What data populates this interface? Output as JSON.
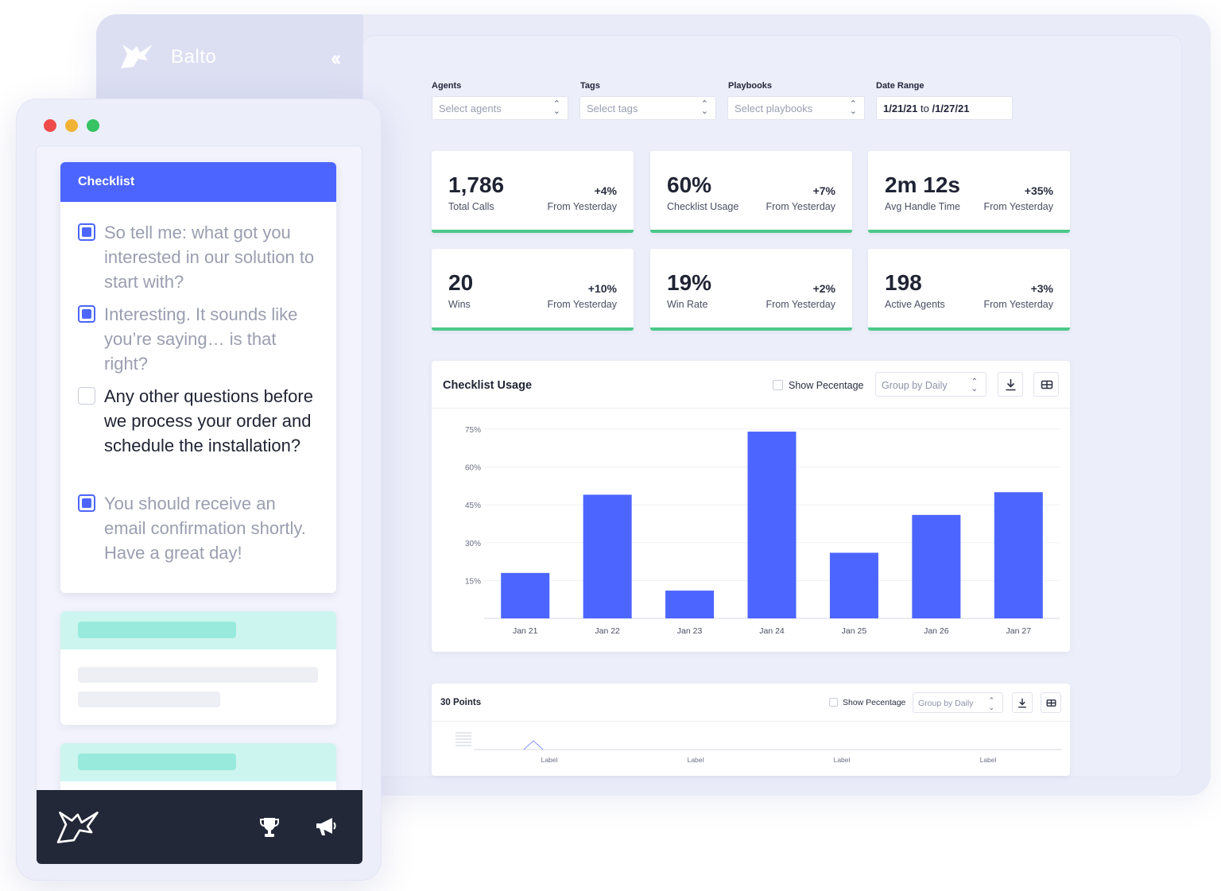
{
  "app": {
    "brand_name": "Balto",
    "logo_icon": "fox-logo-icon",
    "collapse_icon": "double-chevron-left-icon"
  },
  "filters": {
    "agents": {
      "label": "Agents",
      "placeholder": "Select agents"
    },
    "tags": {
      "label": "Tags",
      "placeholder": "Select tags"
    },
    "playbooks": {
      "label": "Playbooks",
      "placeholder": "Select playbooks"
    },
    "date_range": {
      "label": "Date Range",
      "start": "1/21/21",
      "to": "to",
      "end": "/1/27/21"
    }
  },
  "stats": [
    {
      "value": "1,786",
      "label": "Total Calls",
      "delta": "+4%",
      "from": "From Yesterday"
    },
    {
      "value": "60%",
      "label": "Checklist Usage",
      "delta": "+7%",
      "from": "From Yesterday"
    },
    {
      "value": "2m 12s",
      "label": "Avg Handle Time",
      "delta": "+35%",
      "from": "From Yesterday"
    },
    {
      "value": "20",
      "label": "Wins",
      "delta": "+10%",
      "from": "From Yesterday"
    },
    {
      "value": "19%",
      "label": "Win Rate",
      "delta": "+2%",
      "from": "From Yesterday"
    },
    {
      "value": "198",
      "label": "Active Agents",
      "delta": "+3%",
      "from": "From Yesterday"
    }
  ],
  "checklist_usage": {
    "title": "Checklist Usage",
    "show_percentage_label": "Show Pecentage",
    "group_by_label": "Group by Daily",
    "download_icon": "download-icon",
    "table_icon": "table-view-icon"
  },
  "points_card": {
    "title": "30 Points",
    "show_percentage_label": "Show Pecentage",
    "group_by_label": "Group by Daily",
    "x_tick_labels": [
      "Label",
      "Label",
      "Label",
      "Label"
    ]
  },
  "chart_data": {
    "type": "bar",
    "title": "Checklist Usage",
    "categories": [
      "Jan 21",
      "Jan 22",
      "Jan 23",
      "Jan 24",
      "Jan 25",
      "Jan 26",
      "Jan 27"
    ],
    "values": [
      18,
      49,
      11,
      74,
      26,
      41,
      50
    ],
    "y_ticks": [
      "15%",
      "30%",
      "45%",
      "60%",
      "75%"
    ],
    "y_tick_values": [
      15,
      30,
      45,
      60,
      75
    ],
    "ylim": [
      0,
      80
    ],
    "grid": true,
    "bar_color": "#4d65ff"
  },
  "checklist": {
    "title": "Checklist",
    "items": [
      {
        "text": "So tell me: what got you interested in our solution to start with?",
        "checked": true
      },
      {
        "text": "Interesting. It sounds like you’re saying… is that right?",
        "checked": true
      },
      {
        "text": "Any other questions before we process your order and schedule the installation?",
        "checked": false
      },
      {
        "text": "You should receive an email confirmation shortly. Have a great day!",
        "checked": true
      }
    ]
  },
  "bottom_bar": {
    "logo_icon": "fox-logo-icon",
    "trophy_icon": "trophy-icon",
    "megaphone_icon": "megaphone-icon"
  },
  "colors": {
    "accent": "#4d65ff",
    "success": "#4cc88a",
    "dark_bar": "#222838",
    "placeholder_teal": "#98ebdc"
  }
}
